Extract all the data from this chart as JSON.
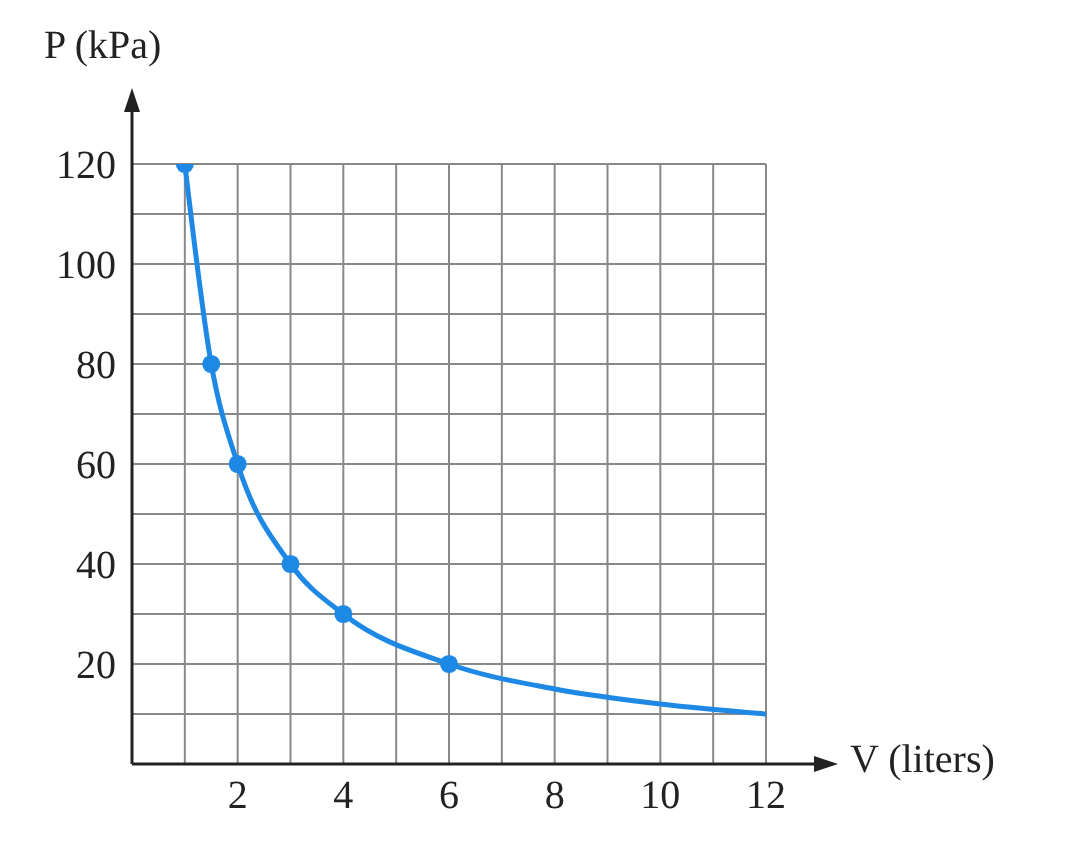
{
  "chart_data": {
    "type": "line",
    "xlabel": "V (liters)",
    "ylabel": "P (kPa)",
    "xlim": [
      0,
      12
    ],
    "ylim": [
      0,
      120
    ],
    "xticks": [
      {
        "value": 1,
        "label": null
      },
      2,
      {
        "value": 3,
        "label": null
      },
      4,
      {
        "value": 5,
        "label": null
      },
      6,
      {
        "value": 7,
        "label": null
      },
      8,
      {
        "value": 9,
        "label": null
      },
      10,
      {
        "value": 11,
        "label": null
      },
      12
    ],
    "yticks": [
      {
        "value": 10,
        "label": null
      },
      20,
      {
        "value": 30,
        "label": null
      },
      40,
      {
        "value": 50,
        "label": null
      },
      60,
      {
        "value": 70,
        "label": null
      },
      80,
      {
        "value": 90,
        "label": null
      },
      100,
      {
        "value": 110,
        "label": null
      },
      120
    ],
    "grid": true,
    "series": [
      {
        "color": "#1e88e5",
        "marker": "none",
        "x": [
          1,
          1.5,
          2,
          3,
          4,
          6,
          8,
          10,
          12
        ],
        "values": [
          120,
          80,
          60,
          40,
          30,
          20,
          15,
          12,
          10
        ]
      },
      {
        "type": "scatter",
        "color": "#1e88e5",
        "marker": "circle",
        "x": [
          1,
          1.5,
          2,
          3,
          4,
          6
        ],
        "values": [
          120,
          80,
          60,
          40,
          30,
          20
        ]
      }
    ]
  }
}
